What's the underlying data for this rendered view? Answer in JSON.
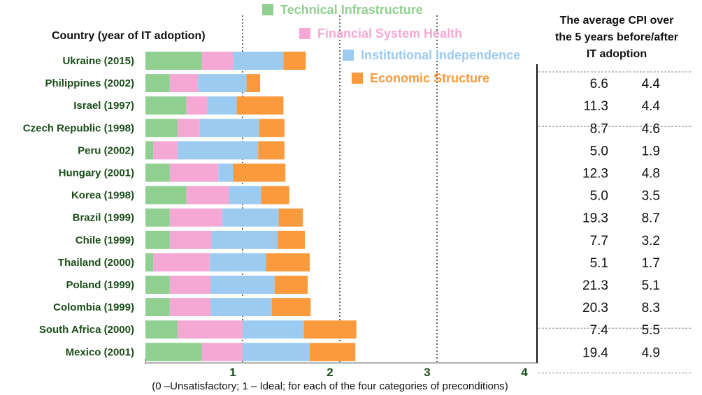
{
  "chart_data": {
    "type": "bar",
    "stacked": true,
    "orientation": "horizontal",
    "header_left": "Country (year of IT adoption)",
    "header_right": [
      "The average CPI over",
      "the 5 years before/after",
      "IT adoption"
    ],
    "footnote": "(0 –Unsatisfactory; 1 – Ideal; for each of the four categories of preconditions)",
    "xlim": [
      0,
      4
    ],
    "xticks": [
      "1",
      "2",
      "3",
      "4"
    ],
    "categories": [
      "Ukraine (2015)",
      "Philippines (2002)",
      "Israel (1997)",
      "Czech Republic (1998)",
      "Peru (2002)",
      "Hungary (2001)",
      "Korea (1998)",
      "Brazil (1999)",
      "Chile (1999)",
      "Thailand (2000)",
      "Poland (1999)",
      "Colombia (1999)",
      "South Africa (2000)",
      "Mexico (2001)"
    ],
    "series": [
      {
        "name": "Technical Infrastructure",
        "color": "#8fcf8f",
        "values": [
          0.58,
          0.25,
          0.42,
          0.33,
          0.08,
          0.25,
          0.42,
          0.25,
          0.25,
          0.08,
          0.25,
          0.25,
          0.33,
          0.58
        ]
      },
      {
        "name": "Financial System Health",
        "color": "#f5a8d4",
        "values": [
          0.32,
          0.29,
          0.22,
          0.23,
          0.25,
          0.5,
          0.44,
          0.54,
          0.43,
          0.58,
          0.42,
          0.42,
          0.67,
          0.42
        ]
      },
      {
        "name": "Institutional Independence",
        "color": "#9ccbf2",
        "values": [
          0.52,
          0.5,
          0.3,
          0.61,
          0.83,
          0.15,
          0.33,
          0.58,
          0.68,
          0.58,
          0.66,
          0.63,
          0.63,
          0.69
        ]
      },
      {
        "name": "Economic Structure",
        "color": "#fb9a3c",
        "values": [
          0.23,
          0.14,
          0.48,
          0.26,
          0.27,
          0.54,
          0.29,
          0.25,
          0.28,
          0.45,
          0.34,
          0.4,
          0.54,
          0.47
        ]
      }
    ],
    "cpi_before": [
      "",
      "6.6",
      "11.3",
      "8.7",
      "5.0",
      "12.3",
      "5.0",
      "19.3",
      "7.7",
      "5.1",
      "21.3",
      "20.3",
      "7.4",
      "19.4"
    ],
    "cpi_after": [
      "",
      "4.4",
      "4.4",
      "4.6",
      "1.9",
      "4.8",
      "3.5",
      "8.7",
      "3.2",
      "1.7",
      "5.1",
      "8.3",
      "5.5",
      "4.9"
    ],
    "legend_position": "top-center"
  }
}
